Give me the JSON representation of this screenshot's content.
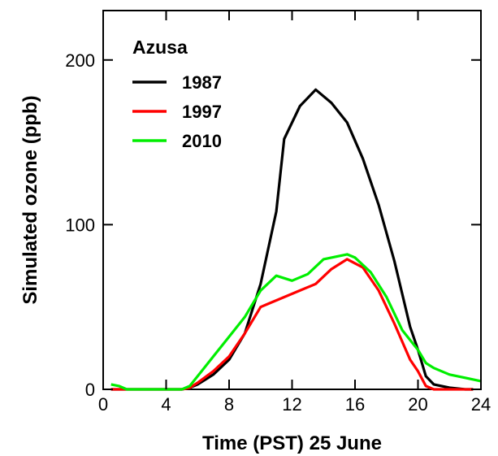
{
  "chart_data": {
    "type": "line",
    "xlabel": "Time (PST) 25 June",
    "ylabel": "Simulated ozone  (ppb)",
    "xlim": [
      0,
      24
    ],
    "ylim": [
      0,
      230
    ],
    "xticks": [
      0,
      4,
      8,
      12,
      16,
      20,
      24
    ],
    "yticks": [
      0,
      100,
      200
    ],
    "grid": false,
    "legend": {
      "title": "Azusa",
      "position": "top-left"
    },
    "series": [
      {
        "name": "1987",
        "color": "#000000",
        "points": [
          [
            0.5,
            0
          ],
          [
            1,
            0
          ],
          [
            2,
            0
          ],
          [
            3,
            0
          ],
          [
            4,
            0
          ],
          [
            5,
            0
          ],
          [
            5.5,
            1
          ],
          [
            6,
            3
          ],
          [
            7,
            9
          ],
          [
            8,
            18
          ],
          [
            9,
            34
          ],
          [
            10,
            64
          ],
          [
            11,
            108
          ],
          [
            11.5,
            152
          ],
          [
            12.5,
            172
          ],
          [
            13.5,
            182
          ],
          [
            14.5,
            174
          ],
          [
            15.5,
            162
          ],
          [
            16.5,
            140
          ],
          [
            17.5,
            112
          ],
          [
            18.5,
            78
          ],
          [
            19.5,
            38
          ],
          [
            20,
            24
          ],
          [
            20.5,
            8
          ],
          [
            21,
            3
          ],
          [
            22,
            1
          ],
          [
            23,
            0
          ],
          [
            23.5,
            0
          ]
        ]
      },
      {
        "name": "1997",
        "color": "#ff0000",
        "points": [
          [
            0.5,
            0
          ],
          [
            1,
            0
          ],
          [
            2,
            0
          ],
          [
            3,
            0
          ],
          [
            4,
            0
          ],
          [
            5,
            0
          ],
          [
            5.5,
            1
          ],
          [
            6,
            4
          ],
          [
            7,
            11
          ],
          [
            8,
            20
          ],
          [
            9,
            34
          ],
          [
            10,
            50
          ],
          [
            10.5,
            52
          ],
          [
            11.5,
            56
          ],
          [
            12.5,
            60
          ],
          [
            13.5,
            64
          ],
          [
            14.5,
            73
          ],
          [
            15.5,
            79
          ],
          [
            16.5,
            74
          ],
          [
            17.5,
            60
          ],
          [
            18.5,
            40
          ],
          [
            19.5,
            18
          ],
          [
            20,
            11
          ],
          [
            20.5,
            2
          ],
          [
            21,
            0
          ],
          [
            22,
            0
          ],
          [
            23,
            0
          ],
          [
            23.5,
            0
          ]
        ]
      },
      {
        "name": "2010",
        "color": "#00ee00",
        "points": [
          [
            0.5,
            3
          ],
          [
            1,
            2
          ],
          [
            1.5,
            0
          ],
          [
            2,
            0
          ],
          [
            3,
            0
          ],
          [
            4,
            0
          ],
          [
            5,
            0
          ],
          [
            5.5,
            2
          ],
          [
            6,
            8
          ],
          [
            7,
            20
          ],
          [
            8,
            32
          ],
          [
            9,
            44
          ],
          [
            10,
            60
          ],
          [
            11,
            69
          ],
          [
            12,
            66
          ],
          [
            13,
            70
          ],
          [
            14,
            79
          ],
          [
            15.5,
            82
          ],
          [
            16,
            80
          ],
          [
            17,
            71
          ],
          [
            18,
            56
          ],
          [
            19,
            36
          ],
          [
            20,
            24
          ],
          [
            20.5,
            16
          ],
          [
            21,
            13
          ],
          [
            22,
            9
          ],
          [
            23,
            7
          ],
          [
            24,
            5
          ]
        ]
      }
    ]
  }
}
